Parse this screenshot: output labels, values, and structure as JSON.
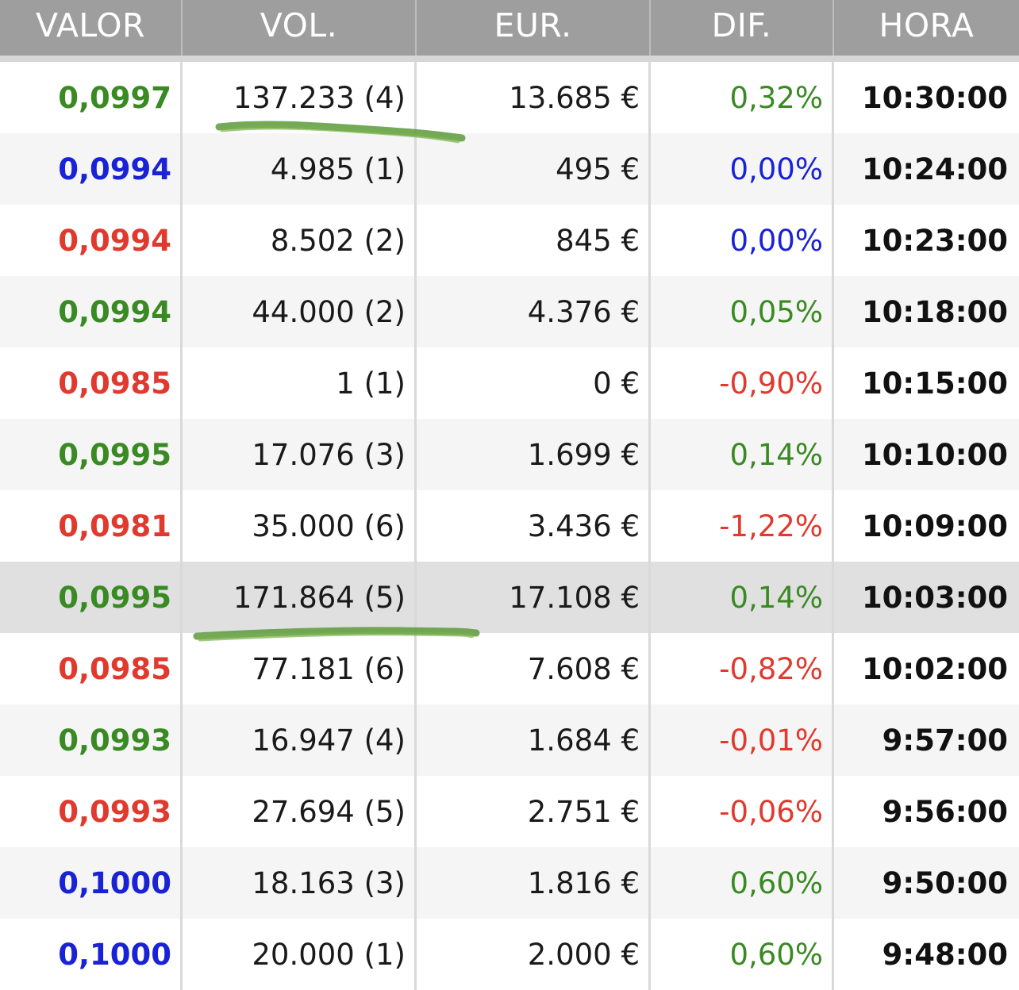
{
  "header": {
    "valor": "VALOR",
    "vol": "VOL.",
    "eur": "EUR.",
    "dif": "DIF.",
    "hora": "HORA"
  },
  "colors": {
    "green": "#3a8a24",
    "red": "#e03a2f",
    "blue": "#1a22d6",
    "scribble": "#5a9a3a"
  },
  "rows": [
    {
      "valor": "0,0997",
      "valor_color": "green",
      "vol": "137.233 (4)",
      "eur": "13.685 €",
      "dif": "0,32%",
      "dif_color": "green",
      "hora": "10:30:00"
    },
    {
      "valor": "0,0994",
      "valor_color": "blue",
      "vol": "4.985 (1)",
      "eur": "495 €",
      "dif": "0,00%",
      "dif_color": "blue",
      "hora": "10:24:00"
    },
    {
      "valor": "0,0994",
      "valor_color": "red",
      "vol": "8.502 (2)",
      "eur": "845 €",
      "dif": "0,00%",
      "dif_color": "blue",
      "hora": "10:23:00"
    },
    {
      "valor": "0,0994",
      "valor_color": "green",
      "vol": "44.000 (2)",
      "eur": "4.376 €",
      "dif": "0,05%",
      "dif_color": "green",
      "hora": "10:18:00"
    },
    {
      "valor": "0,0985",
      "valor_color": "red",
      "vol": "1 (1)",
      "eur": "0 €",
      "dif": "-0,90%",
      "dif_color": "red",
      "hora": "10:15:00"
    },
    {
      "valor": "0,0995",
      "valor_color": "green",
      "vol": "17.076 (3)",
      "eur": "1.699 €",
      "dif": "0,14%",
      "dif_color": "green",
      "hora": "10:10:00"
    },
    {
      "valor": "0,0981",
      "valor_color": "red",
      "vol": "35.000 (6)",
      "eur": "3.436 €",
      "dif": "-1,22%",
      "dif_color": "red",
      "hora": "10:09:00"
    },
    {
      "valor": "0,0995",
      "valor_color": "green",
      "vol": "171.864 (5)",
      "eur": "17.108 €",
      "dif": "0,14%",
      "dif_color": "green",
      "hora": "10:03:00"
    },
    {
      "valor": "0,0985",
      "valor_color": "red",
      "vol": "77.181 (6)",
      "eur": "7.608 €",
      "dif": "-0,82%",
      "dif_color": "red",
      "hora": "10:02:00"
    },
    {
      "valor": "0,0993",
      "valor_color": "green",
      "vol": "16.947 (4)",
      "eur": "1.684 €",
      "dif": "-0,01%",
      "dif_color": "red",
      "hora": "9:57:00"
    },
    {
      "valor": "0,0993",
      "valor_color": "red",
      "vol": "27.694 (5)",
      "eur": "2.751 €",
      "dif": "-0,06%",
      "dif_color": "red",
      "hora": "9:56:00"
    },
    {
      "valor": "0,1000",
      "valor_color": "blue",
      "vol": "18.163 (3)",
      "eur": "1.816 €",
      "dif": "0,60%",
      "dif_color": "green",
      "hora": "9:50:00"
    },
    {
      "valor": "0,1000",
      "valor_color": "blue",
      "vol": "20.000 (1)",
      "eur": "2.000 €",
      "dif": "0,60%",
      "dif_color": "green",
      "hora": "9:48:00"
    }
  ]
}
